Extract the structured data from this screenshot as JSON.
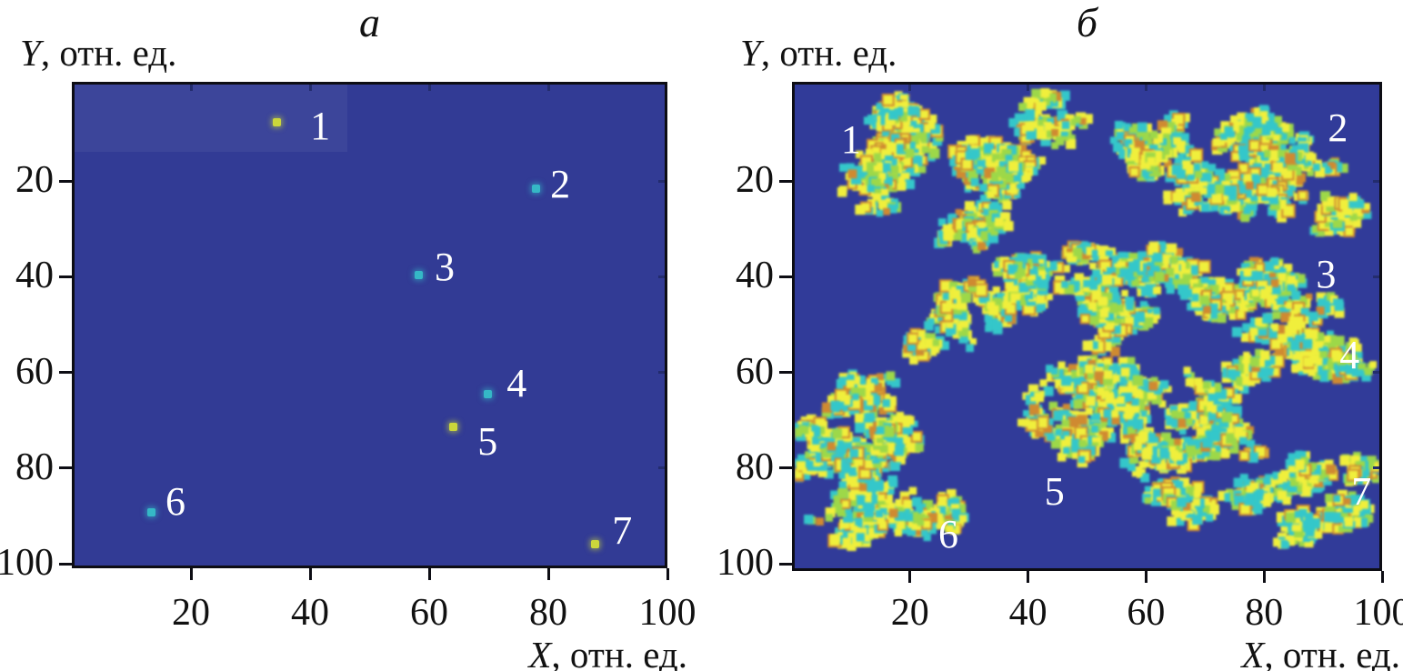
{
  "figure": {
    "background": "#ffffff",
    "plot_background": "#323B95",
    "border_color": "#0d0d14",
    "panels": [
      {
        "id": "a",
        "title": "a",
        "y_label_var": "Y",
        "y_label_rest": ", отн. ед.",
        "x_label_var": "X",
        "x_label_rest": ", отн. ед."
      },
      {
        "id": "b",
        "title": "б",
        "y_label_var": "Y",
        "y_label_rest": ", отн. ед.",
        "x_label_var": "X",
        "x_label_rest": ", отн. ед."
      }
    ]
  },
  "chart_data": [
    {
      "type": "scatter",
      "panel": "a",
      "title": "a",
      "xlabel": "X, отн. ед.",
      "ylabel": "Y, отн. ед.",
      "xlim": [
        0,
        100
      ],
      "ylim": [
        0,
        100
      ],
      "y_axis_inverted": true,
      "grid": false,
      "x_ticks": [
        20,
        40,
        60,
        80,
        100
      ],
      "y_ticks": [
        20,
        40,
        60,
        80,
        100
      ],
      "background": "#323B95",
      "point_colors": {
        "yellow": "#CBD63B",
        "cyan": "#35B8C6"
      },
      "points": [
        {
          "label": "1",
          "x": 34.4,
          "y": 7.7,
          "color": "yellow",
          "label_x": 41.7,
          "label_y": 8.5
        },
        {
          "label": "2",
          "x": 77.9,
          "y": 21.5,
          "color": "cyan",
          "label_x": 82.0,
          "label_y": 20.7
        },
        {
          "label": "3",
          "x": 58.2,
          "y": 39.7,
          "color": "cyan",
          "label_x": 62.6,
          "label_y": 38.0
        },
        {
          "label": "4",
          "x": 69.9,
          "y": 64.5,
          "color": "cyan",
          "label_x": 74.7,
          "label_y": 62.4
        },
        {
          "label": "5",
          "x": 64.1,
          "y": 71.4,
          "color": "yellow",
          "label_x": 69.8,
          "label_y": 74.5
        },
        {
          "label": "6",
          "x": 13.3,
          "y": 89.2,
          "color": "cyan",
          "label_x": 17.4,
          "label_y": 87.1
        },
        {
          "label": "7",
          "x": 87.8,
          "y": 95.9,
          "color": "yellow",
          "label_x": 92.4,
          "label_y": 93.2
        }
      ]
    },
    {
      "type": "heatmap",
      "panel": "б",
      "title": "б",
      "xlabel": "X, отн. ед.",
      "ylabel": "Y, отн. ед.",
      "xlim": [
        0,
        100
      ],
      "ylim": [
        0,
        100
      ],
      "y_axis_inverted": true,
      "grid": false,
      "x_ticks": [
        20,
        40,
        60,
        80,
        100
      ],
      "y_ticks": [
        20,
        40,
        60,
        80,
        100
      ],
      "background": "#323B95",
      "palette": {
        "yellow": "#EFEE44",
        "cyan": "#3AC6C8",
        "green": "#9FD74F",
        "orange": "#CC8A36"
      },
      "seed": 12,
      "labels": [
        {
          "label": "1",
          "x": 10.0,
          "y": 11.5
        },
        {
          "label": "2",
          "x": 92.5,
          "y": 9.0
        },
        {
          "label": "3",
          "x": 90.5,
          "y": 39.5
        },
        {
          "label": "4",
          "x": 94.5,
          "y": 56.5
        },
        {
          "label": "5",
          "x": 44.5,
          "y": 85.0
        },
        {
          "label": "6",
          "x": 26.5,
          "y": 94.0
        },
        {
          "label": "7",
          "x": 96.5,
          "y": 85.0
        }
      ],
      "clusters": [
        {
          "label": "1",
          "lobes": [
            [
              24,
              9,
              12,
              8
            ],
            [
              18,
              20,
              10,
              9
            ],
            [
              31,
              19,
              9,
              8
            ],
            [
              27,
              29,
              10,
              6
            ],
            [
              44,
              7,
              7,
              6
            ],
            [
              37,
              14,
              7,
              6
            ]
          ]
        },
        {
          "label": "2",
          "lobes": [
            [
              63,
              12,
              9,
              8
            ],
            [
              76,
              10,
              9,
              7
            ],
            [
              87,
              17,
              9,
              8
            ],
            [
              79,
              24,
              9,
              7
            ],
            [
              92,
              27,
              6,
              5
            ],
            [
              68,
              22,
              7,
              6
            ]
          ]
        },
        {
          "label": "3",
          "lobes": [
            [
              30,
              48,
              8,
              7
            ],
            [
              40,
              42,
              9,
              7
            ],
            [
              51,
              40,
              9,
              7
            ],
            [
              62,
              40,
              9,
              7
            ],
            [
              72,
              42,
              8,
              7
            ],
            [
              82,
              42,
              8,
              6
            ],
            [
              55,
              50,
              8,
              6
            ],
            [
              24,
              55,
              5,
              4
            ],
            [
              88,
              47,
              5,
              4
            ]
          ]
        },
        {
          "label": "4",
          "lobes": [
            [
              82,
              53,
              7,
              5
            ],
            [
              90,
              56,
              7,
              5
            ],
            [
              95,
              59,
              4,
              4
            ],
            [
              79,
              60,
              6,
              4
            ]
          ]
        },
        {
          "label": "5",
          "lobes": [
            [
              48,
              64,
              9,
              7
            ],
            [
              58,
              68,
              9,
              7
            ],
            [
              68,
              66,
              8,
              7
            ],
            [
              73,
              76,
              8,
              7
            ],
            [
              60,
              80,
              9,
              7
            ],
            [
              45,
              73,
              8,
              7
            ],
            [
              67,
              87,
              8,
              5
            ],
            [
              55,
              58,
              7,
              5
            ],
            [
              78,
              84,
              6,
              5
            ]
          ]
        },
        {
          "label": "6",
          "lobes": [
            [
              13,
              66,
              8,
              6
            ],
            [
              7,
              79,
              7,
              7
            ],
            [
              16,
              81,
              8,
              7
            ],
            [
              22,
              89,
              8,
              6
            ],
            [
              9,
              91,
              7,
              6
            ],
            [
              15,
              74,
              7,
              6
            ],
            [
              3,
              71,
              4,
              4
            ]
          ]
        },
        {
          "label": "7",
          "lobes": [
            [
              86,
              83,
              7,
              6
            ],
            [
              93,
              87,
              6,
              6
            ],
            [
              87,
              93,
              7,
              4
            ],
            [
              96,
              81,
              4,
              4
            ]
          ]
        }
      ]
    }
  ]
}
